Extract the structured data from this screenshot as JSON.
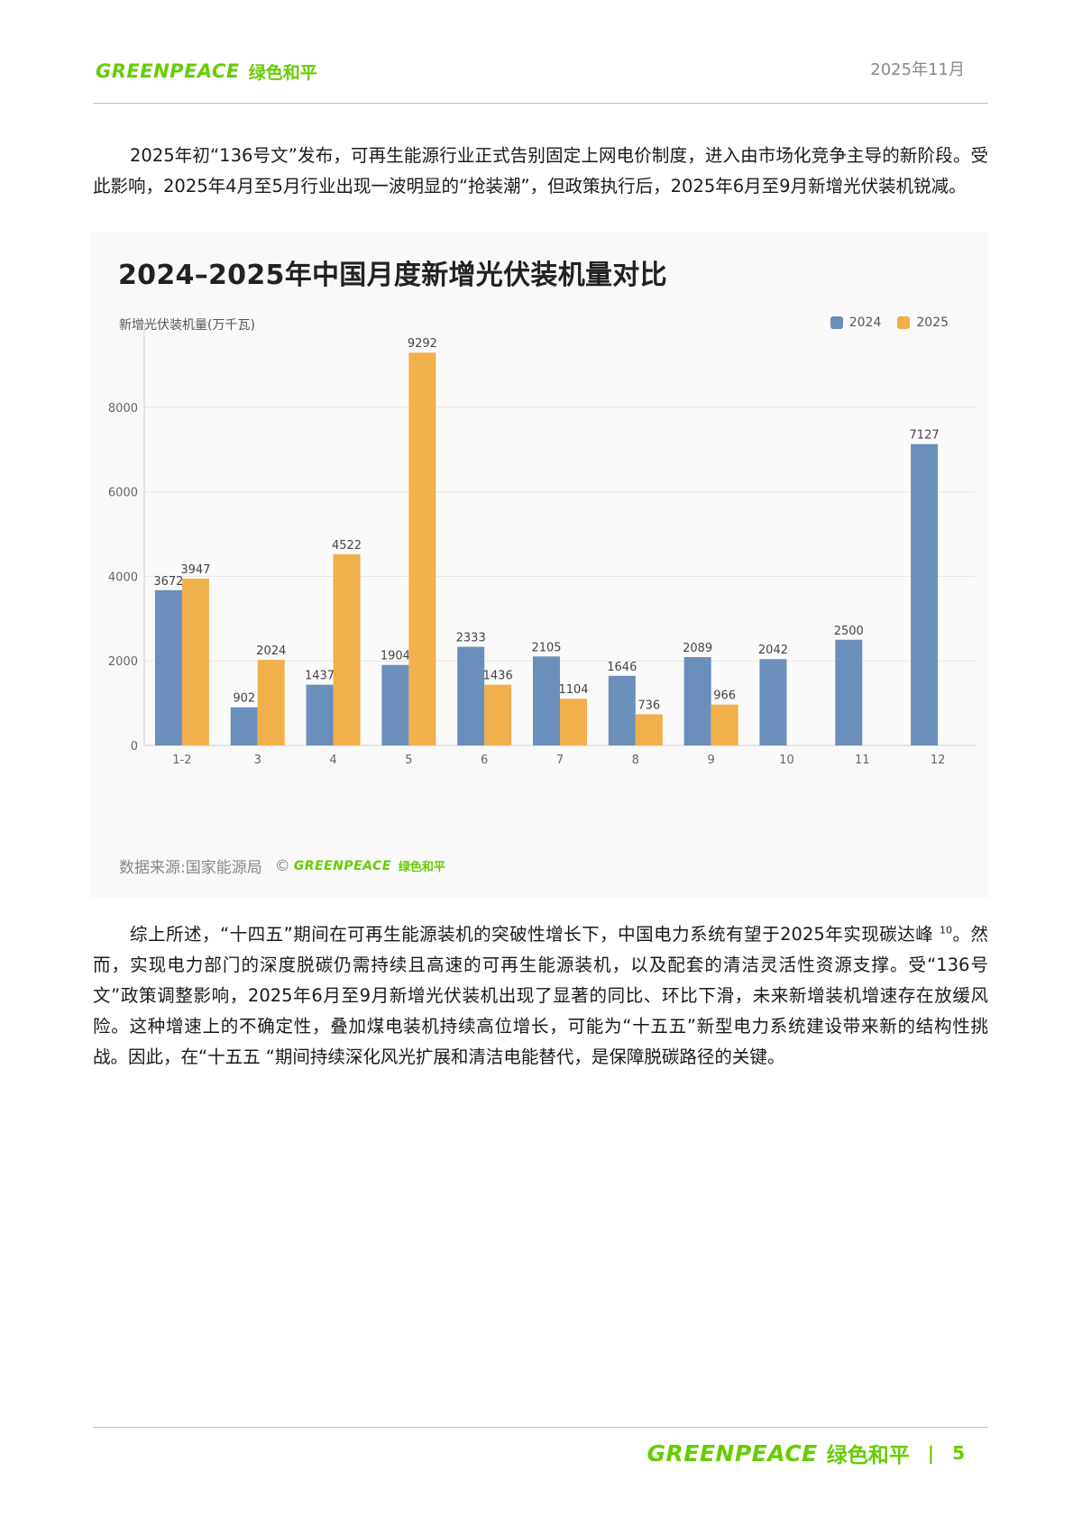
{
  "header": {
    "logo_en": "GREENPEACE",
    "logo_cn": "绿色和平",
    "date": "2025年11月"
  },
  "paragraphs": {
    "p1": "2025年初“136号文”发布，可再生能源行业正式告别固定上网电价制度，进入由市场化竞争主导的新阶段。受此影响，2025年4月至5月行业出现一波明显的“抢装潮”，但政策执行后，2025年6月至9月新增光伏装机锐减。",
    "p2_before": "综上所述，“十四五”期间在可再生能源装机的突破性增长下，中国电力系统有望于2025年实现碳达峰",
    "p2_sup": "10",
    "p2_after": "。然而，实现电力部门的深度脱碳仍需持续且高速的可再生能源装机，以及配套的清洁灵活性资源支撑。受“136号文”政策调整影响，2025年6月至9月新增光伏装机出现了显著的同比、环比下滑，未来新增装机增速存在放缓风险。这种增速上的不确定性，叠加煤电装机持续高位增长，可能为“十五五”新型电力系统建设带来新的结构性挑战。因此，在“十五五 “期间持续深化风光扩展和清洁电能替代，是保障脱碳路径的关键。"
  },
  "chart_data": {
    "type": "bar",
    "title": "2024–2025年中国月度新增光伏装机量对比",
    "ylabel": "新增光伏装机量(万千瓦)",
    "xlabel": "",
    "categories": [
      "1-2",
      "3",
      "4",
      "5",
      "6",
      "7",
      "8",
      "9",
      "10",
      "11",
      "12"
    ],
    "series": [
      {
        "name": "2024",
        "color": "#6a8fba",
        "values": [
          3672,
          902,
          1437,
          1904,
          2333,
          2105,
          1646,
          2089,
          2042,
          2500,
          7127
        ]
      },
      {
        "name": "2025",
        "color": "#f0b04c",
        "values": [
          3947,
          2024,
          4522,
          9292,
          1436,
          1104,
          736,
          966,
          null,
          null,
          null
        ]
      }
    ],
    "ylim": [
      0,
      10000
    ],
    "yticks": [
      0,
      2000,
      4000,
      6000,
      8000
    ],
    "grid": true,
    "legend_position": "top-right",
    "source_label": "数据来源:国家能源局",
    "copyright_symbol": "©"
  },
  "footer": {
    "logo_en": "GREENPEACE",
    "logo_cn": "绿色和平",
    "separator": "|",
    "page_number": "5"
  }
}
